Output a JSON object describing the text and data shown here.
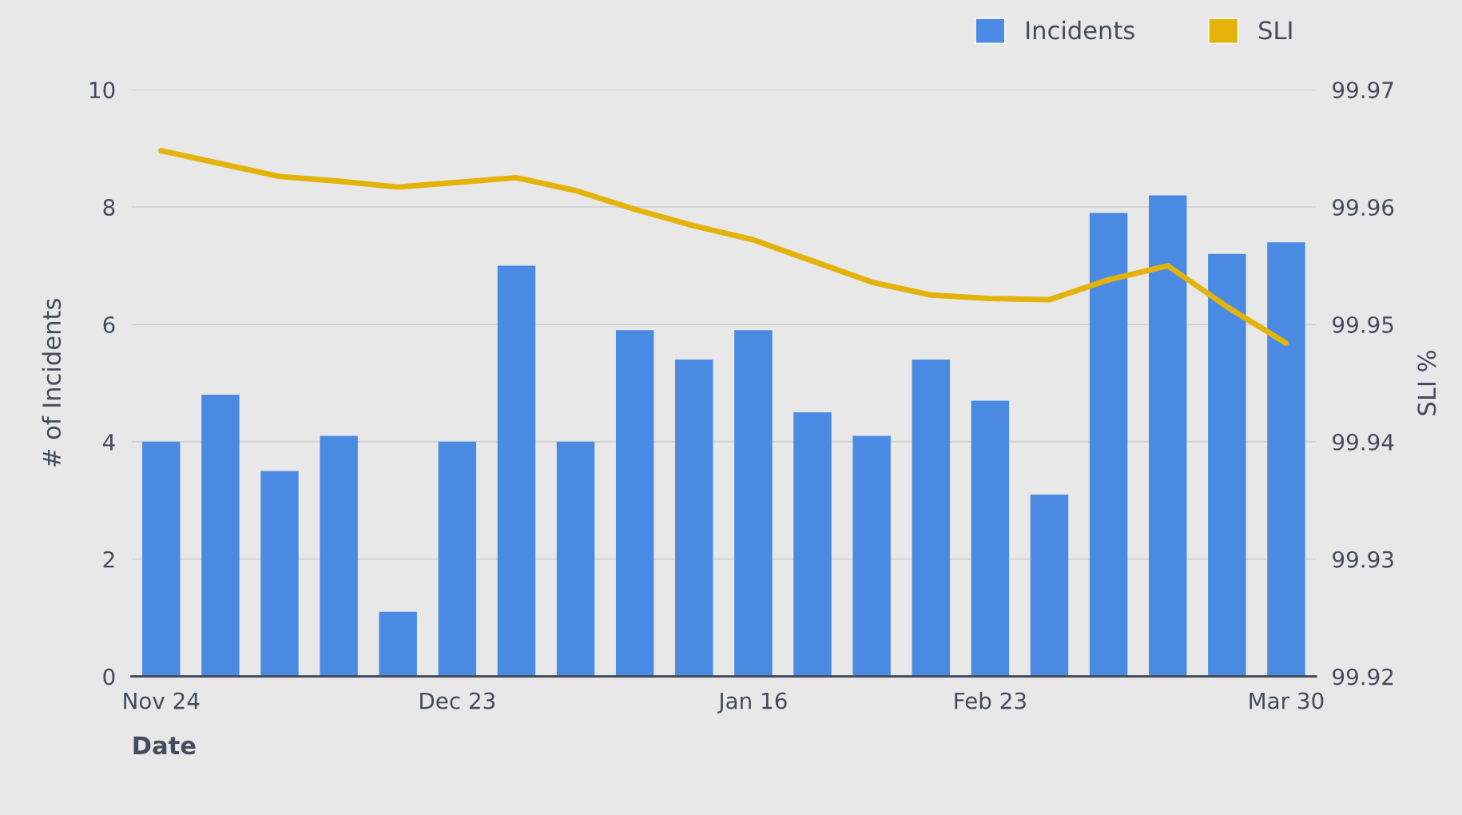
{
  "chart_data": {
    "type": "bar",
    "xlabel": "Date",
    "ylabel": "# of Incidents",
    "y2label": "SLI %",
    "categories": [
      "Nov 24",
      null,
      null,
      null,
      null,
      "Dec 23",
      null,
      null,
      null,
      null,
      "Jan 16",
      null,
      null,
      null,
      "Feb 23",
      null,
      null,
      null,
      null,
      "Mar 30"
    ],
    "series": [
      {
        "name": "Incidents",
        "color": "#4a8ae3",
        "values": [
          4.0,
          4.8,
          3.5,
          4.1,
          1.1,
          4.0,
          7.0,
          4.0,
          5.9,
          5.4,
          5.9,
          4.5,
          4.1,
          5.4,
          4.7,
          3.1,
          7.9,
          8.2,
          7.2,
          7.4
        ]
      },
      {
        "name": "SLI",
        "type": "line",
        "axis": "y2",
        "color": "#e3b30a",
        "values": [
          99.9648,
          99.9637,
          99.9626,
          99.9622,
          99.9617,
          99.9621,
          99.9625,
          99.9614,
          99.9598,
          99.9584,
          99.9572,
          99.9554,
          99.9536,
          99.9525,
          99.9522,
          99.9521,
          99.9538,
          99.955,
          99.9515,
          99.9484
        ]
      }
    ],
    "ylim": [
      0,
      10
    ],
    "yticks": [
      0,
      2,
      4,
      6,
      8,
      10
    ],
    "y2lim": [
      99.92,
      99.97
    ],
    "y2ticks": [
      99.92,
      99.93,
      99.94,
      99.95,
      99.96,
      99.97
    ],
    "grid": "y",
    "legend": "top right"
  }
}
